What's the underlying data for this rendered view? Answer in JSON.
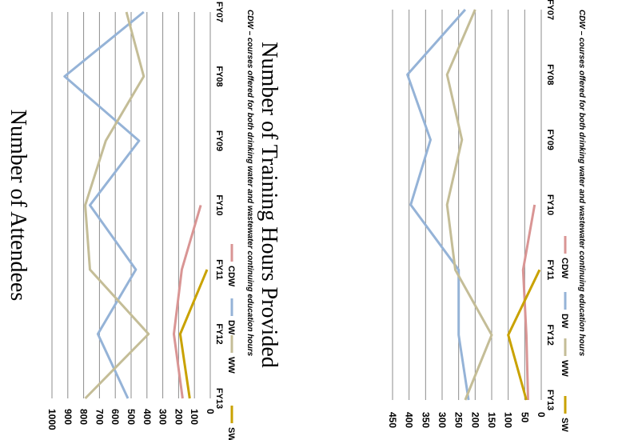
{
  "chart_data": [
    {
      "type": "line",
      "title": "Number of Attendees",
      "categories": [
        "FY07",
        "FY08",
        "FY09",
        "FY10",
        "FY11",
        "FY12",
        "FY13"
      ],
      "ylim": [
        0,
        1000
      ],
      "yticks": [
        "0",
        "100",
        "200",
        "300",
        "400",
        "500",
        "600",
        "700",
        "800",
        "900",
        "1000"
      ],
      "grid": true,
      "legend_position": "bottom",
      "series": [
        {
          "name": "CDW",
          "color": "#d99594",
          "values": [
            null,
            null,
            null,
            60,
            180,
            230,
            175
          ]
        },
        {
          "name": "DW",
          "color": "#95b3d7",
          "values": [
            420,
            920,
            450,
            760,
            470,
            710,
            520
          ]
        },
        {
          "name": "WW",
          "color": "#c4bd97",
          "values": [
            530,
            420,
            660,
            790,
            760,
            390,
            790
          ]
        },
        {
          "name": "SW",
          "color": "#c9a200",
          "values": [
            null,
            null,
            null,
            null,
            20,
            190,
            130
          ]
        }
      ],
      "note": "CDW – courses offered for both drinking water and wastewater continuing education hours"
    },
    {
      "type": "line",
      "title": "Number of Training Hours Provided",
      "categories": [
        "FY07",
        "FY08",
        "FY09",
        "FY10",
        "FY11",
        "FY12",
        "FY13"
      ],
      "ylim": [
        0,
        450
      ],
      "yticks": [
        "0",
        "50",
        "100",
        "150",
        "200",
        "250",
        "300",
        "350",
        "400",
        "450"
      ],
      "grid": true,
      "legend_position": "bottom",
      "series": [
        {
          "name": "CDW",
          "color": "#d99594",
          "values": [
            null,
            null,
            null,
            20,
            55,
            45,
            40
          ]
        },
        {
          "name": "DW",
          "color": "#95b3d7",
          "values": [
            230,
            405,
            335,
            395,
            250,
            250,
            220
          ]
        },
        {
          "name": "WW",
          "color": "#c4bd97",
          "values": [
            200,
            285,
            240,
            285,
            260,
            150,
            230
          ]
        },
        {
          "name": "SW",
          "color": "#c9a200",
          "values": [
            null,
            null,
            null,
            null,
            5,
            100,
            45
          ]
        }
      ],
      "note": "CDW – courses offered for both drinking water and wastewater continuing education hours"
    }
  ]
}
